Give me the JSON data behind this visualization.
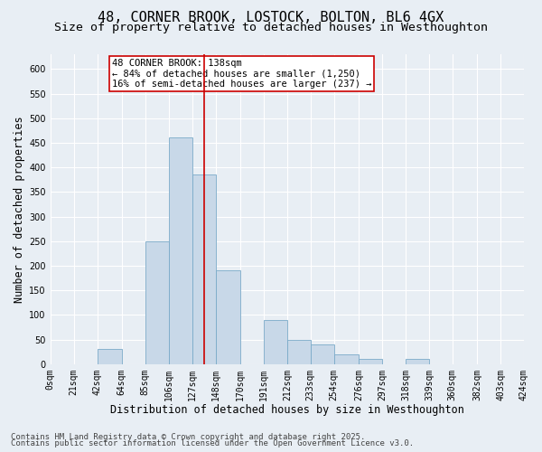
{
  "title": "48, CORNER BROOK, LOSTOCK, BOLTON, BL6 4GX",
  "subtitle": "Size of property relative to detached houses in Westhoughton",
  "xlabel": "Distribution of detached houses by size in Westhoughton",
  "ylabel": "Number of detached properties",
  "footer_line1": "Contains HM Land Registry data © Crown copyright and database right 2025.",
  "footer_line2": "Contains public sector information licensed under the Open Government Licence v3.0.",
  "bins": [
    0,
    21,
    42,
    64,
    85,
    106,
    127,
    148,
    170,
    191,
    212,
    233,
    254,
    276,
    297,
    318,
    339,
    360,
    382,
    403,
    424
  ],
  "bin_labels": [
    "0sqm",
    "21sqm",
    "42sqm",
    "64sqm",
    "85sqm",
    "106sqm",
    "127sqm",
    "148sqm",
    "170sqm",
    "191sqm",
    "212sqm",
    "233sqm",
    "254sqm",
    "276sqm",
    "297sqm",
    "318sqm",
    "339sqm",
    "360sqm",
    "382sqm",
    "403sqm",
    "424sqm"
  ],
  "bar_heights": [
    0,
    0,
    30,
    0,
    250,
    460,
    385,
    190,
    0,
    90,
    50,
    40,
    20,
    10,
    0,
    10,
    0,
    0,
    0,
    0
  ],
  "bar_color": "#c8d8e8",
  "bar_edge_color": "#7aaac8",
  "property_size": 138,
  "vline_color": "#cc0000",
  "annotation_text": "48 CORNER BROOK: 138sqm\n← 84% of detached houses are smaller (1,250)\n16% of semi-detached houses are larger (237) →",
  "annotation_box_color": "#cc0000",
  "ylim": [
    0,
    630
  ],
  "yticks": [
    0,
    50,
    100,
    150,
    200,
    250,
    300,
    350,
    400,
    450,
    500,
    550,
    600
  ],
  "bg_color": "#e8eef4",
  "plot_bg_color": "#e8eef4",
  "grid_color": "#ffffff",
  "title_fontsize": 11,
  "subtitle_fontsize": 9.5,
  "axis_label_fontsize": 8.5,
  "tick_fontsize": 7,
  "annotation_fontsize": 7.5,
  "footer_fontsize": 6.5
}
